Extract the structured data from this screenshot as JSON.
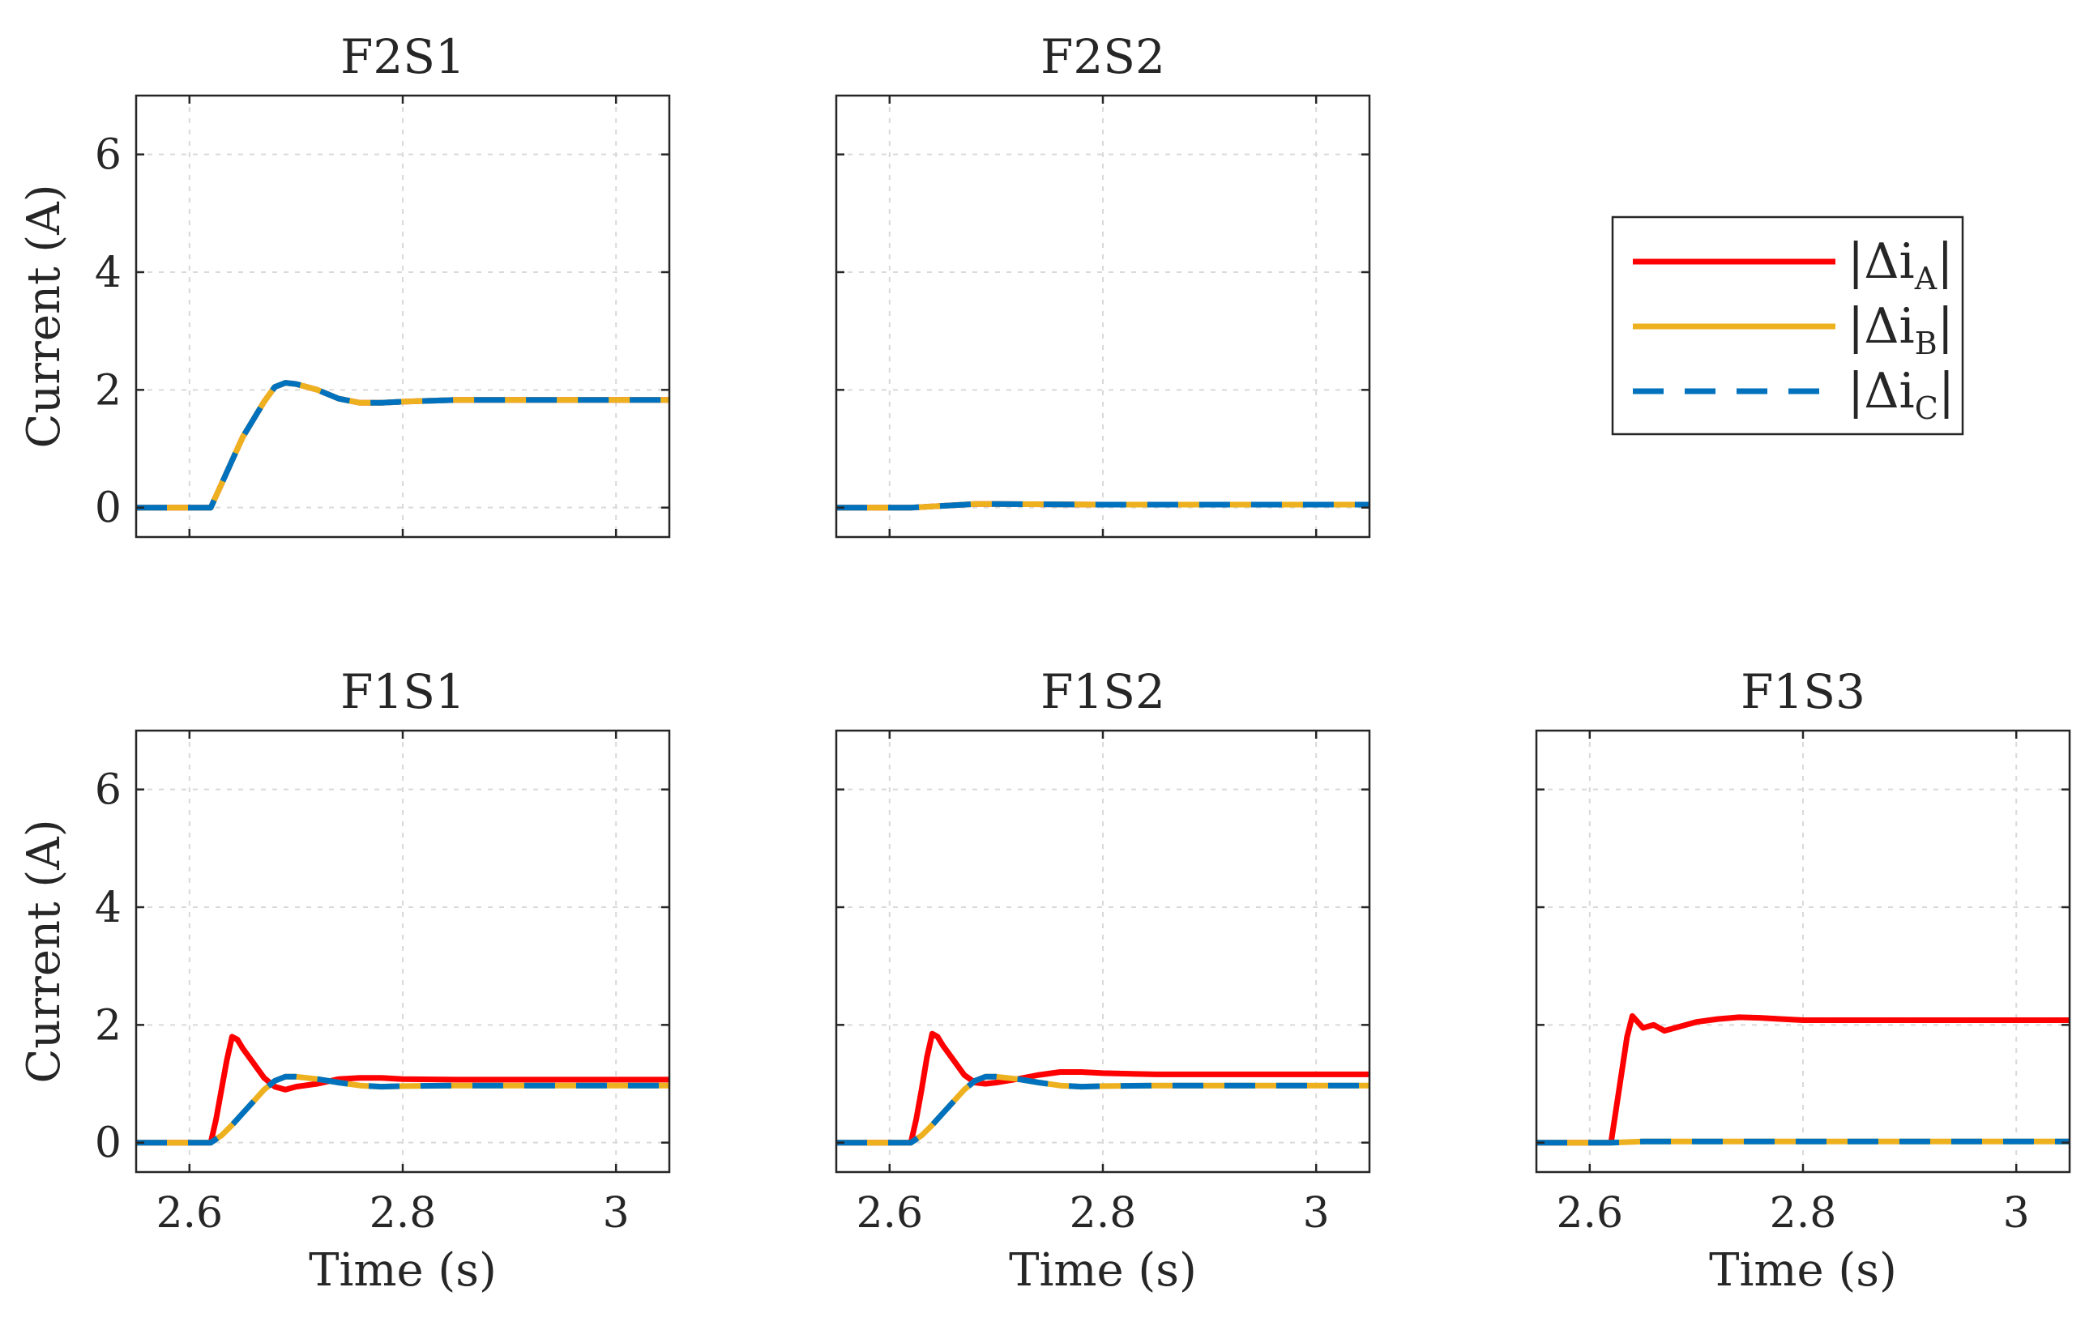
{
  "chart_data": [
    {
      "type": "line",
      "title": "F2S1",
      "xlabel": "",
      "ylabel": "Current (A)",
      "xlim": [
        2.55,
        3.05
      ],
      "ylim": [
        -0.5,
        7
      ],
      "xticks": [
        2.6,
        2.8,
        3
      ],
      "yticks": [
        0,
        2,
        4,
        6
      ],
      "grid": true,
      "series": [
        {
          "name": "|Δi_A|",
          "color": "#ff0000",
          "style": "solid",
          "x": [
            2.55,
            2.6,
            2.62,
            2.63,
            2.64,
            2.65,
            2.66,
            2.67,
            2.68,
            2.69,
            2.7,
            2.72,
            2.74,
            2.76,
            2.78,
            2.8,
            2.85,
            2.9,
            3.05
          ],
          "y": [
            0,
            0,
            0,
            0.4,
            0.8,
            1.2,
            1.5,
            1.8,
            2.05,
            2.12,
            2.1,
            2.0,
            1.85,
            1.78,
            1.78,
            1.8,
            1.83,
            1.83,
            1.83
          ]
        },
        {
          "name": "|Δi_B|",
          "color": "#edb120",
          "style": "solid",
          "x": [
            2.55,
            2.6,
            2.62,
            2.63,
            2.64,
            2.65,
            2.66,
            2.67,
            2.68,
            2.69,
            2.7,
            2.72,
            2.74,
            2.76,
            2.78,
            2.8,
            2.85,
            2.9,
            3.05
          ],
          "y": [
            0,
            0,
            0,
            0.4,
            0.8,
            1.2,
            1.5,
            1.8,
            2.05,
            2.12,
            2.1,
            2.0,
            1.85,
            1.78,
            1.78,
            1.8,
            1.83,
            1.83,
            1.83
          ]
        },
        {
          "name": "|Δi_C|",
          "color": "#0072bd",
          "style": "dashed",
          "x": [
            2.55,
            2.6,
            2.62,
            2.63,
            2.64,
            2.65,
            2.66,
            2.67,
            2.68,
            2.69,
            2.7,
            2.72,
            2.74,
            2.76,
            2.78,
            2.8,
            2.85,
            2.9,
            3.05
          ],
          "y": [
            0,
            0,
            0,
            0.4,
            0.8,
            1.2,
            1.5,
            1.8,
            2.05,
            2.12,
            2.1,
            2.0,
            1.85,
            1.78,
            1.78,
            1.8,
            1.83,
            1.83,
            1.83
          ]
        }
      ]
    },
    {
      "type": "line",
      "title": "F2S2",
      "xlabel": "",
      "ylabel": "",
      "xlim": [
        2.55,
        3.05
      ],
      "ylim": [
        -0.5,
        7
      ],
      "xticks": [
        2.6,
        2.8,
        3
      ],
      "yticks": [
        0,
        2,
        4,
        6
      ],
      "grid": true,
      "series": [
        {
          "name": "|Δi_A|",
          "color": "#ff0000",
          "style": "solid",
          "x": [
            2.55,
            2.6,
            2.62,
            2.65,
            2.68,
            2.7,
            2.8,
            3.05
          ],
          "y": [
            0,
            0,
            0,
            0.03,
            0.06,
            0.06,
            0.05,
            0.05
          ]
        },
        {
          "name": "|Δi_B|",
          "color": "#edb120",
          "style": "solid",
          "x": [
            2.55,
            2.6,
            2.62,
            2.65,
            2.68,
            2.7,
            2.8,
            3.05
          ],
          "y": [
            0,
            0,
            0,
            0.03,
            0.06,
            0.06,
            0.05,
            0.05
          ]
        },
        {
          "name": "|Δi_C|",
          "color": "#0072bd",
          "style": "dashed",
          "x": [
            2.55,
            2.6,
            2.62,
            2.65,
            2.68,
            2.7,
            2.8,
            3.05
          ],
          "y": [
            0,
            0,
            0,
            0.03,
            0.06,
            0.06,
            0.05,
            0.05
          ]
        }
      ]
    },
    {
      "type": "line",
      "title": "F1S1",
      "xlabel": "Time (s)",
      "ylabel": "Current (A)",
      "xlim": [
        2.55,
        3.05
      ],
      "ylim": [
        -0.5,
        7
      ],
      "xticks": [
        2.6,
        2.8,
        3
      ],
      "yticks": [
        0,
        2,
        4,
        6
      ],
      "grid": true,
      "series": [
        {
          "name": "|Δi_A|",
          "color": "#ff0000",
          "style": "solid",
          "x": [
            2.55,
            2.6,
            2.62,
            2.625,
            2.63,
            2.635,
            2.64,
            2.645,
            2.65,
            2.66,
            2.67,
            2.68,
            2.69,
            2.7,
            2.72,
            2.74,
            2.76,
            2.78,
            2.8,
            2.85,
            3.05
          ],
          "y": [
            0,
            0,
            0,
            0.4,
            0.9,
            1.4,
            1.8,
            1.75,
            1.6,
            1.35,
            1.1,
            0.95,
            0.9,
            0.95,
            1.0,
            1.08,
            1.1,
            1.1,
            1.08,
            1.07,
            1.07
          ]
        },
        {
          "name": "|Δi_B|",
          "color": "#edb120",
          "style": "solid",
          "x": [
            2.55,
            2.6,
            2.62,
            2.63,
            2.64,
            2.65,
            2.66,
            2.67,
            2.68,
            2.69,
            2.7,
            2.72,
            2.74,
            2.76,
            2.78,
            2.8,
            2.85,
            3.05
          ],
          "y": [
            0,
            0,
            0,
            0.12,
            0.3,
            0.5,
            0.7,
            0.9,
            1.05,
            1.12,
            1.12,
            1.08,
            1.02,
            0.97,
            0.95,
            0.96,
            0.97,
            0.97
          ]
        },
        {
          "name": "|Δi_C|",
          "color": "#0072bd",
          "style": "dashed",
          "x": [
            2.55,
            2.6,
            2.62,
            2.63,
            2.64,
            2.65,
            2.66,
            2.67,
            2.68,
            2.69,
            2.7,
            2.72,
            2.74,
            2.76,
            2.78,
            2.8,
            2.85,
            3.05
          ],
          "y": [
            0,
            0,
            0,
            0.12,
            0.3,
            0.5,
            0.7,
            0.9,
            1.05,
            1.12,
            1.12,
            1.08,
            1.02,
            0.97,
            0.95,
            0.96,
            0.97,
            0.97
          ]
        }
      ]
    },
    {
      "type": "line",
      "title": "F1S2",
      "xlabel": "Time (s)",
      "ylabel": "",
      "xlim": [
        2.55,
        3.05
      ],
      "ylim": [
        -0.5,
        7
      ],
      "xticks": [
        2.6,
        2.8,
        3
      ],
      "yticks": [
        0,
        2,
        4,
        6
      ],
      "grid": true,
      "series": [
        {
          "name": "|Δi_A|",
          "color": "#ff0000",
          "style": "solid",
          "x": [
            2.55,
            2.6,
            2.62,
            2.625,
            2.63,
            2.635,
            2.64,
            2.645,
            2.65,
            2.66,
            2.67,
            2.68,
            2.69,
            2.7,
            2.72,
            2.74,
            2.76,
            2.78,
            2.8,
            2.85,
            3.05
          ],
          "y": [
            0,
            0,
            0,
            0.4,
            0.9,
            1.45,
            1.85,
            1.8,
            1.65,
            1.4,
            1.15,
            1.02,
            1.0,
            1.02,
            1.08,
            1.15,
            1.2,
            1.2,
            1.18,
            1.16,
            1.16
          ]
        },
        {
          "name": "|Δi_B|",
          "color": "#edb120",
          "style": "solid",
          "x": [
            2.55,
            2.6,
            2.62,
            2.63,
            2.64,
            2.65,
            2.66,
            2.67,
            2.68,
            2.69,
            2.7,
            2.72,
            2.74,
            2.76,
            2.78,
            2.8,
            2.85,
            3.05
          ],
          "y": [
            0,
            0,
            0,
            0.12,
            0.3,
            0.5,
            0.7,
            0.9,
            1.05,
            1.12,
            1.12,
            1.08,
            1.02,
            0.97,
            0.95,
            0.96,
            0.97,
            0.97
          ]
        },
        {
          "name": "|Δi_C|",
          "color": "#0072bd",
          "style": "dashed",
          "x": [
            2.55,
            2.6,
            2.62,
            2.63,
            2.64,
            2.65,
            2.66,
            2.67,
            2.68,
            2.69,
            2.7,
            2.72,
            2.74,
            2.76,
            2.78,
            2.8,
            2.85,
            3.05
          ],
          "y": [
            0,
            0,
            0,
            0.12,
            0.3,
            0.5,
            0.7,
            0.9,
            1.05,
            1.12,
            1.12,
            1.08,
            1.02,
            0.97,
            0.95,
            0.96,
            0.97,
            0.97
          ]
        }
      ]
    },
    {
      "type": "line",
      "title": "F1S3",
      "xlabel": "Time (s)",
      "ylabel": "",
      "xlim": [
        2.55,
        3.05
      ],
      "ylim": [
        -0.5,
        7
      ],
      "xticks": [
        2.6,
        2.8,
        3
      ],
      "yticks": [
        0,
        2,
        4,
        6
      ],
      "grid": true,
      "series": [
        {
          "name": "|Δi_A|",
          "color": "#ff0000",
          "style": "solid",
          "x": [
            2.55,
            2.6,
            2.62,
            2.625,
            2.63,
            2.635,
            2.64,
            2.645,
            2.65,
            2.66,
            2.67,
            2.68,
            2.7,
            2.72,
            2.74,
            2.76,
            2.78,
            2.8,
            2.85,
            3.05
          ],
          "y": [
            0,
            0,
            0,
            0.6,
            1.2,
            1.8,
            2.15,
            2.05,
            1.95,
            2.0,
            1.9,
            1.95,
            2.05,
            2.1,
            2.13,
            2.12,
            2.1,
            2.08,
            2.08,
            2.08
          ]
        },
        {
          "name": "|Δi_B|",
          "color": "#edb120",
          "style": "solid",
          "x": [
            2.55,
            2.6,
            2.62,
            2.65,
            2.7,
            3.05
          ],
          "y": [
            0,
            0,
            0,
            0.02,
            0.02,
            0.02
          ]
        },
        {
          "name": "|Δi_C|",
          "color": "#0072bd",
          "style": "dashed",
          "x": [
            2.55,
            2.6,
            2.62,
            2.65,
            2.7,
            3.05
          ],
          "y": [
            0,
            0,
            0,
            0.02,
            0.02,
            0.02
          ]
        }
      ]
    }
  ],
  "legend": {
    "placement": "right of top row",
    "entries": [
      {
        "label_prefix": "|Δi",
        "subscript": "A",
        "label_suffix": "|",
        "color": "#ff0000",
        "style": "solid"
      },
      {
        "label_prefix": "|Δi",
        "subscript": "B",
        "label_suffix": "|",
        "color": "#edb120",
        "style": "solid"
      },
      {
        "label_prefix": "|Δi",
        "subscript": "C",
        "label_suffix": "|",
        "color": "#0072bd",
        "style": "dashed"
      }
    ]
  }
}
